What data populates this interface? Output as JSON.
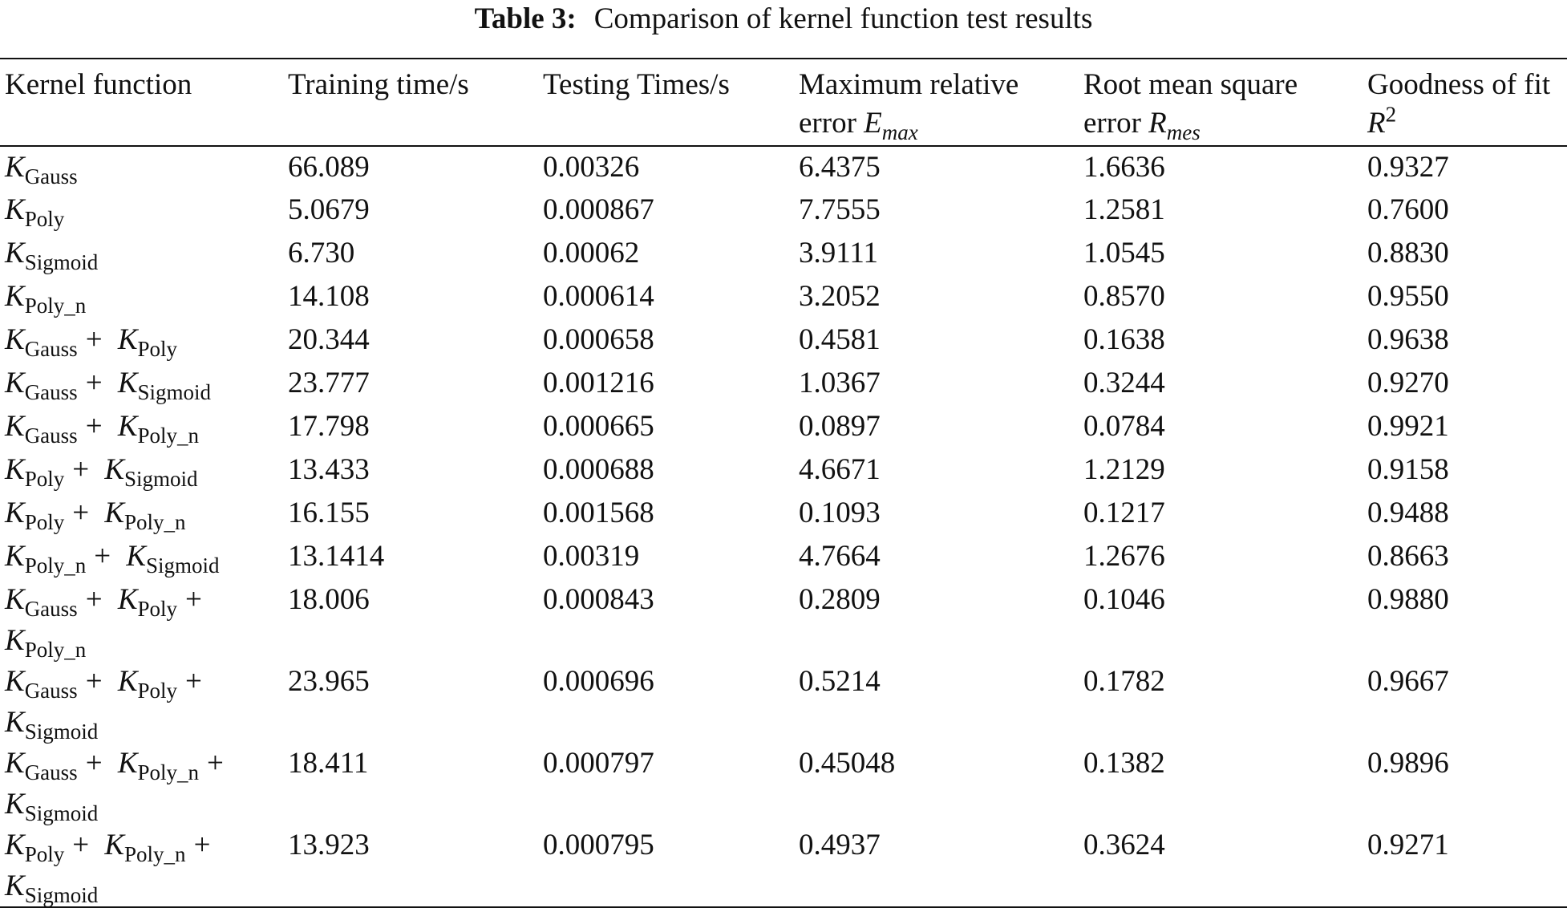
{
  "title": {
    "label": "Table 3:",
    "text": "Comparison of kernel function test results"
  },
  "table": {
    "columns": [
      {
        "text": "Kernel function"
      },
      {
        "text": "Training time/s"
      },
      {
        "text": "Testing Times/s"
      },
      {
        "text": "Maximum relative error",
        "var": "E",
        "sub": "max"
      },
      {
        "text": "Root mean square error",
        "var": "R",
        "sub": "mes"
      },
      {
        "text": "Goodness of fit",
        "var": "R",
        "sup": "2"
      }
    ],
    "rows": [
      {
        "kernel": [
          {
            "base": "K",
            "sub": "Gauss"
          }
        ],
        "values": [
          "66.089",
          "0.00326",
          "6.4375",
          "1.6636",
          "0.9327"
        ]
      },
      {
        "kernel": [
          {
            "base": "K",
            "sub": "Poly"
          }
        ],
        "values": [
          "5.0679",
          "0.000867",
          "7.7555",
          "1.2581",
          "0.7600"
        ]
      },
      {
        "kernel": [
          {
            "base": "K",
            "sub": "Sigmoid"
          }
        ],
        "values": [
          "6.730",
          "0.00062",
          "3.9111",
          "1.0545",
          "0.8830"
        ]
      },
      {
        "kernel": [
          {
            "base": "K",
            "sub": "Poly_n"
          }
        ],
        "values": [
          "14.108",
          "0.000614",
          "3.2052",
          "0.8570",
          "0.9550"
        ]
      },
      {
        "kernel": [
          {
            "base": "K",
            "sub": "Gauss"
          },
          "+",
          {
            "base": "K",
            "sub": "Poly"
          }
        ],
        "values": [
          "20.344",
          "0.000658",
          "0.4581",
          "0.1638",
          "0.9638"
        ]
      },
      {
        "kernel": [
          {
            "base": "K",
            "sub": "Gauss"
          },
          "+",
          {
            "base": "K",
            "sub": "Sigmoid"
          }
        ],
        "values": [
          "23.777",
          "0.001216",
          "1.0367",
          "0.3244",
          "0.9270"
        ]
      },
      {
        "kernel": [
          {
            "base": "K",
            "sub": "Gauss"
          },
          "+",
          {
            "base": "K",
            "sub": "Poly_n"
          }
        ],
        "values": [
          "17.798",
          "0.000665",
          "0.0897",
          "0.0784",
          "0.9921"
        ]
      },
      {
        "kernel": [
          {
            "base": "K",
            "sub": "Poly"
          },
          "+",
          {
            "base": "K",
            "sub": "Sigmoid"
          }
        ],
        "values": [
          "13.433",
          "0.000688",
          "4.6671",
          "1.2129",
          "0.9158"
        ]
      },
      {
        "kernel": [
          {
            "base": "K",
            "sub": "Poly"
          },
          "+",
          {
            "base": "K",
            "sub": "Poly_n"
          }
        ],
        "values": [
          "16.155",
          "0.001568",
          "0.1093",
          "0.1217",
          "0.9488"
        ]
      },
      {
        "kernel": [
          {
            "base": "K",
            "sub": "Poly_n"
          },
          "+",
          {
            "base": "K",
            "sub": "Sigmoid"
          }
        ],
        "values": [
          "13.1414",
          "0.00319",
          "4.7664",
          "1.2676",
          "0.8663"
        ]
      },
      {
        "kernel": [
          {
            "base": "K",
            "sub": "Gauss"
          },
          "+",
          {
            "base": "K",
            "sub": "Poly"
          },
          "+",
          {
            "base": "K",
            "sub": "Poly_n"
          }
        ],
        "values": [
          "18.006",
          "0.000843",
          "0.2809",
          "0.1046",
          "0.9880"
        ]
      },
      {
        "kernel": [
          {
            "base": "K",
            "sub": "Gauss"
          },
          "+",
          {
            "base": "K",
            "sub": "Poly"
          },
          "+",
          {
            "base": "K",
            "sub": "Sigmoid"
          }
        ],
        "values": [
          "23.965",
          "0.000696",
          "0.5214",
          "0.1782",
          "0.9667"
        ]
      },
      {
        "kernel": [
          {
            "base": "K",
            "sub": "Gauss"
          },
          "+",
          {
            "base": "K",
            "sub": "Poly_n"
          },
          "+",
          {
            "base": "K",
            "sub": "Sigmoid"
          }
        ],
        "values": [
          "18.411",
          "0.000797",
          "0.45048",
          "0.1382",
          "0.9896"
        ]
      },
      {
        "kernel": [
          {
            "base": "K",
            "sub": "Poly"
          },
          "+",
          {
            "base": "K",
            "sub": "Poly_n"
          },
          "+",
          {
            "base": "K",
            "sub": "Sigmoid"
          }
        ],
        "values": [
          "13.923",
          "0.000795",
          "0.4937",
          "0.3624",
          "0.9271"
        ]
      }
    ]
  }
}
